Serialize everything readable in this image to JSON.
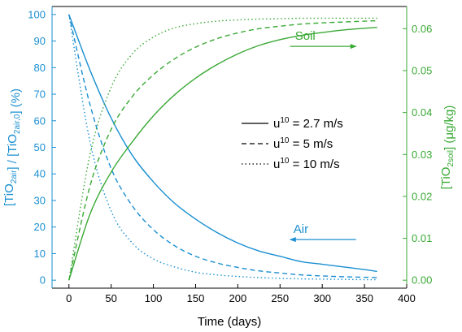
{
  "chart_data": {
    "type": "line",
    "xlabel": "Time (days)",
    "ylabel_left": {
      "parts": [
        {
          "t": "[TiO"
        },
        {
          "t": "2air",
          "sub": true
        },
        {
          "t": "] / [TiO"
        },
        {
          "t": "2air,0",
          "sub": true
        },
        {
          "t": "] (%)"
        }
      ]
    },
    "ylabel_right": {
      "parts": [
        {
          "t": "[TiO"
        },
        {
          "t": "2soil",
          "sub": true
        },
        {
          "t": "] (μg/kg)"
        }
      ]
    },
    "xlim": [
      -20,
      400
    ],
    "ylim_left": [
      -3,
      103
    ],
    "ylim_right": [
      -0.0019,
      0.0653
    ],
    "x_ticks": [
      0,
      50,
      100,
      150,
      200,
      250,
      300,
      350,
      400
    ],
    "y_ticks_left": [
      0,
      10,
      20,
      30,
      40,
      50,
      60,
      70,
      80,
      90,
      100
    ],
    "y_ticks_right": [
      "0.00",
      "0.01",
      "0.02",
      "0.03",
      "0.04",
      "0.05",
      "0.06"
    ],
    "colors": {
      "air": "#1a8fd1",
      "soil": "#3aa935",
      "axis": "#000000"
    },
    "series": [
      {
        "group": "air",
        "name": "u10 = 2.7 m/s",
        "style": "solid",
        "x": [
          0,
          25,
          50,
          75,
          100,
          125,
          150,
          175,
          200,
          225,
          250,
          275,
          300,
          325,
          350,
          365
        ],
        "y": [
          100,
          79,
          61,
          47,
          37,
          29,
          23,
          18,
          14,
          11,
          9,
          7,
          6,
          5,
          4,
          3.3
        ]
      },
      {
        "group": "air",
        "name": "u10 = 5 m/s",
        "style": "dashed",
        "x": [
          0,
          25,
          50,
          75,
          100,
          125,
          150,
          175,
          200,
          225,
          250,
          275,
          300,
          325,
          350,
          365
        ],
        "y": [
          100,
          66,
          42,
          28,
          19,
          13,
          9,
          6.5,
          4.8,
          3.5,
          2.7,
          2.0,
          1.6,
          1.3,
          1.1,
          1.0
        ]
      },
      {
        "group": "air",
        "name": "u10 = 10 m/s",
        "style": "dotted",
        "x": [
          0,
          25,
          50,
          75,
          100,
          125,
          150,
          175,
          200,
          225,
          250,
          275,
          300,
          325,
          350,
          365
        ],
        "y": [
          100,
          52,
          26,
          14,
          8,
          5,
          3,
          2,
          1.4,
          1.0,
          0.7,
          0.5,
          0.4,
          0.3,
          0.2,
          0.2
        ]
      },
      {
        "group": "soil",
        "name": "u10 = 2.7 m/s",
        "style": "solid",
        "x": [
          0,
          25,
          50,
          75,
          100,
          125,
          150,
          175,
          200,
          225,
          250,
          275,
          300,
          325,
          350,
          365
        ],
        "y": [
          0,
          0.0158,
          0.0258,
          0.033,
          0.0392,
          0.0442,
          0.0482,
          0.0514,
          0.054,
          0.056,
          0.0574,
          0.0584,
          0.0591,
          0.0597,
          0.0601,
          0.0603
        ]
      },
      {
        "group": "soil",
        "name": "u10 = 5 m/s",
        "style": "dashed",
        "x": [
          0,
          25,
          50,
          75,
          100,
          125,
          150,
          175,
          200,
          225,
          250,
          275,
          300,
          325,
          350,
          365
        ],
        "y": [
          0,
          0.0225,
          0.036,
          0.0438,
          0.049,
          0.0528,
          0.0556,
          0.0576,
          0.059,
          0.06,
          0.0606,
          0.0611,
          0.0614,
          0.0616,
          0.0618,
          0.0619
        ]
      },
      {
        "group": "soil",
        "name": "u10 = 10 m/s",
        "style": "dotted",
        "x": [
          0,
          25,
          50,
          75,
          100,
          125,
          150,
          175,
          200,
          225,
          250,
          275,
          300,
          325,
          350,
          365
        ],
        "y": [
          0,
          0.03,
          0.046,
          0.054,
          0.058,
          0.0602,
          0.0612,
          0.0618,
          0.0621,
          0.0623,
          0.0624,
          0.0625,
          0.0625,
          0.0625,
          0.0625,
          0.0625
        ]
      }
    ],
    "legend": [
      {
        "style": "solid",
        "label": "u10 = 2.7 m/s"
      },
      {
        "style": "dashed",
        "label": "u10 = 5 m/s"
      },
      {
        "style": "dotted",
        "label": "u10 = 10 m/s"
      }
    ],
    "legend_placement": "center-right",
    "annotations": [
      {
        "label": "Soil",
        "group": "soil",
        "arrow": "right",
        "x": 262,
        "y_left": 88,
        "x_end": 340
      },
      {
        "label": "Air",
        "group": "air",
        "arrow": "left",
        "x": 262,
        "y_left": 15.3,
        "x_end": 340
      }
    ],
    "grid": false
  }
}
